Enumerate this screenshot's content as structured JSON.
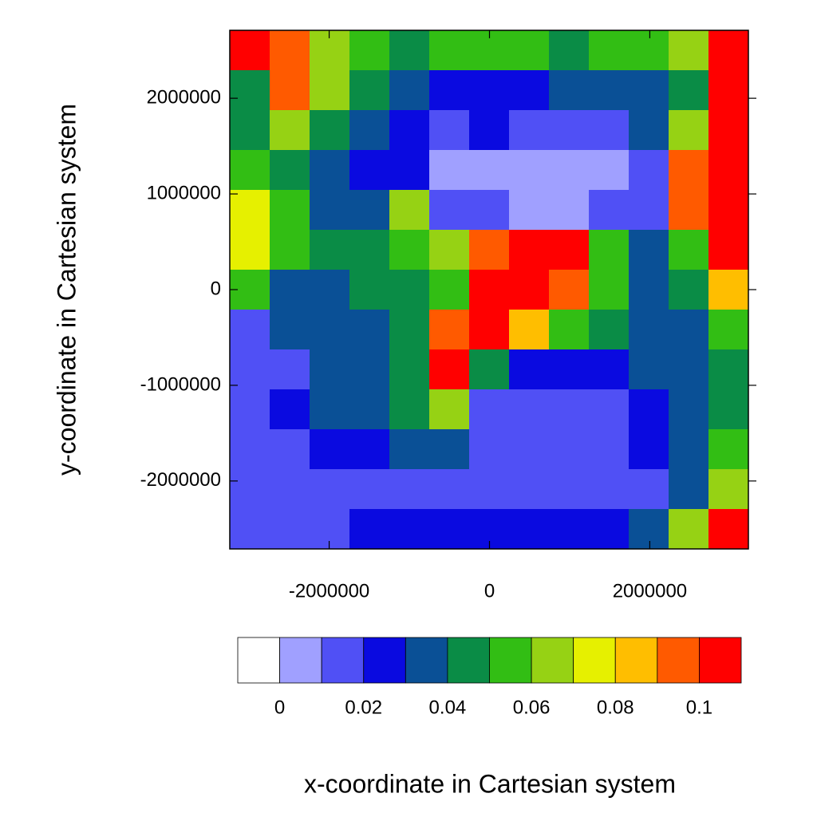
{
  "chart_data": {
    "type": "heatmap",
    "x_label": "x-coordinate in Cartesian system",
    "y_label": "y-coordinate in Cartesian system",
    "xlim": [
      -3240000,
      3230000
    ],
    "ylim": [
      -2710000,
      2710000
    ],
    "xticks": [
      -2000000,
      0,
      2000000
    ],
    "yticks": [
      -2000000,
      -1000000,
      0,
      1000000,
      2000000
    ],
    "levels": [
      0,
      0.01,
      0.02,
      0.03,
      0.04,
      0.05,
      0.06,
      0.07,
      0.08,
      0.09,
      0.1
    ],
    "colors": [
      "#ffffff",
      "#a0a0ff",
      "#5050f5",
      "#0a0ae0",
      "#0a5096",
      "#0a8c46",
      "#32be14",
      "#96d214",
      "#e6f000",
      "#ffbe00",
      "#ff5a00",
      "#ff0000"
    ],
    "colorbar_ticks": [
      0,
      0.02,
      0.04,
      0.06,
      0.08,
      0.1
    ],
    "z": [
      [
        0.105,
        0.095,
        0.065,
        0.055,
        0.045,
        0.055,
        0.055,
        0.055,
        0.045,
        0.055,
        0.055,
        0.065,
        0.105
      ],
      [
        0.045,
        0.095,
        0.065,
        0.045,
        0.035,
        0.025,
        0.025,
        0.025,
        0.035,
        0.035,
        0.035,
        0.045,
        0.105
      ],
      [
        0.045,
        0.065,
        0.045,
        0.035,
        0.025,
        0.015,
        0.025,
        0.015,
        0.015,
        0.015,
        0.035,
        0.065,
        0.105
      ],
      [
        0.055,
        0.045,
        0.035,
        0.025,
        0.025,
        0.005,
        0.005,
        0.005,
        0.005,
        0.005,
        0.015,
        0.095,
        0.105
      ],
      [
        0.075,
        0.055,
        0.035,
        0.035,
        0.065,
        0.015,
        0.015,
        0.005,
        0.005,
        0.015,
        0.015,
        0.095,
        0.105
      ],
      [
        0.075,
        0.055,
        0.045,
        0.045,
        0.055,
        0.065,
        0.095,
        0.105,
        0.105,
        0.055,
        0.035,
        0.055,
        0.105
      ],
      [
        0.055,
        0.035,
        0.035,
        0.045,
        0.045,
        0.055,
        0.105,
        0.105,
        0.095,
        0.055,
        0.035,
        0.045,
        0.085
      ],
      [
        0.015,
        0.035,
        0.035,
        0.035,
        0.045,
        0.095,
        0.105,
        0.085,
        0.055,
        0.045,
        0.035,
        0.035,
        0.055
      ],
      [
        0.015,
        0.015,
        0.035,
        0.035,
        0.045,
        0.105,
        0.045,
        0.025,
        0.025,
        0.025,
        0.035,
        0.035,
        0.045
      ],
      [
        0.015,
        0.025,
        0.035,
        0.035,
        0.045,
        0.065,
        0.015,
        0.015,
        0.015,
        0.015,
        0.025,
        0.035,
        0.045
      ],
      [
        0.015,
        0.015,
        0.025,
        0.025,
        0.035,
        0.035,
        0.015,
        0.015,
        0.015,
        0.015,
        0.025,
        0.035,
        0.055
      ],
      [
        0.015,
        0.015,
        0.015,
        0.015,
        0.015,
        0.015,
        0.015,
        0.015,
        0.015,
        0.015,
        0.015,
        0.035,
        0.065
      ],
      [
        0.015,
        0.015,
        0.015,
        0.025,
        0.025,
        0.025,
        0.025,
        0.025,
        0.025,
        0.025,
        0.035,
        0.065,
        0.105
      ]
    ]
  }
}
